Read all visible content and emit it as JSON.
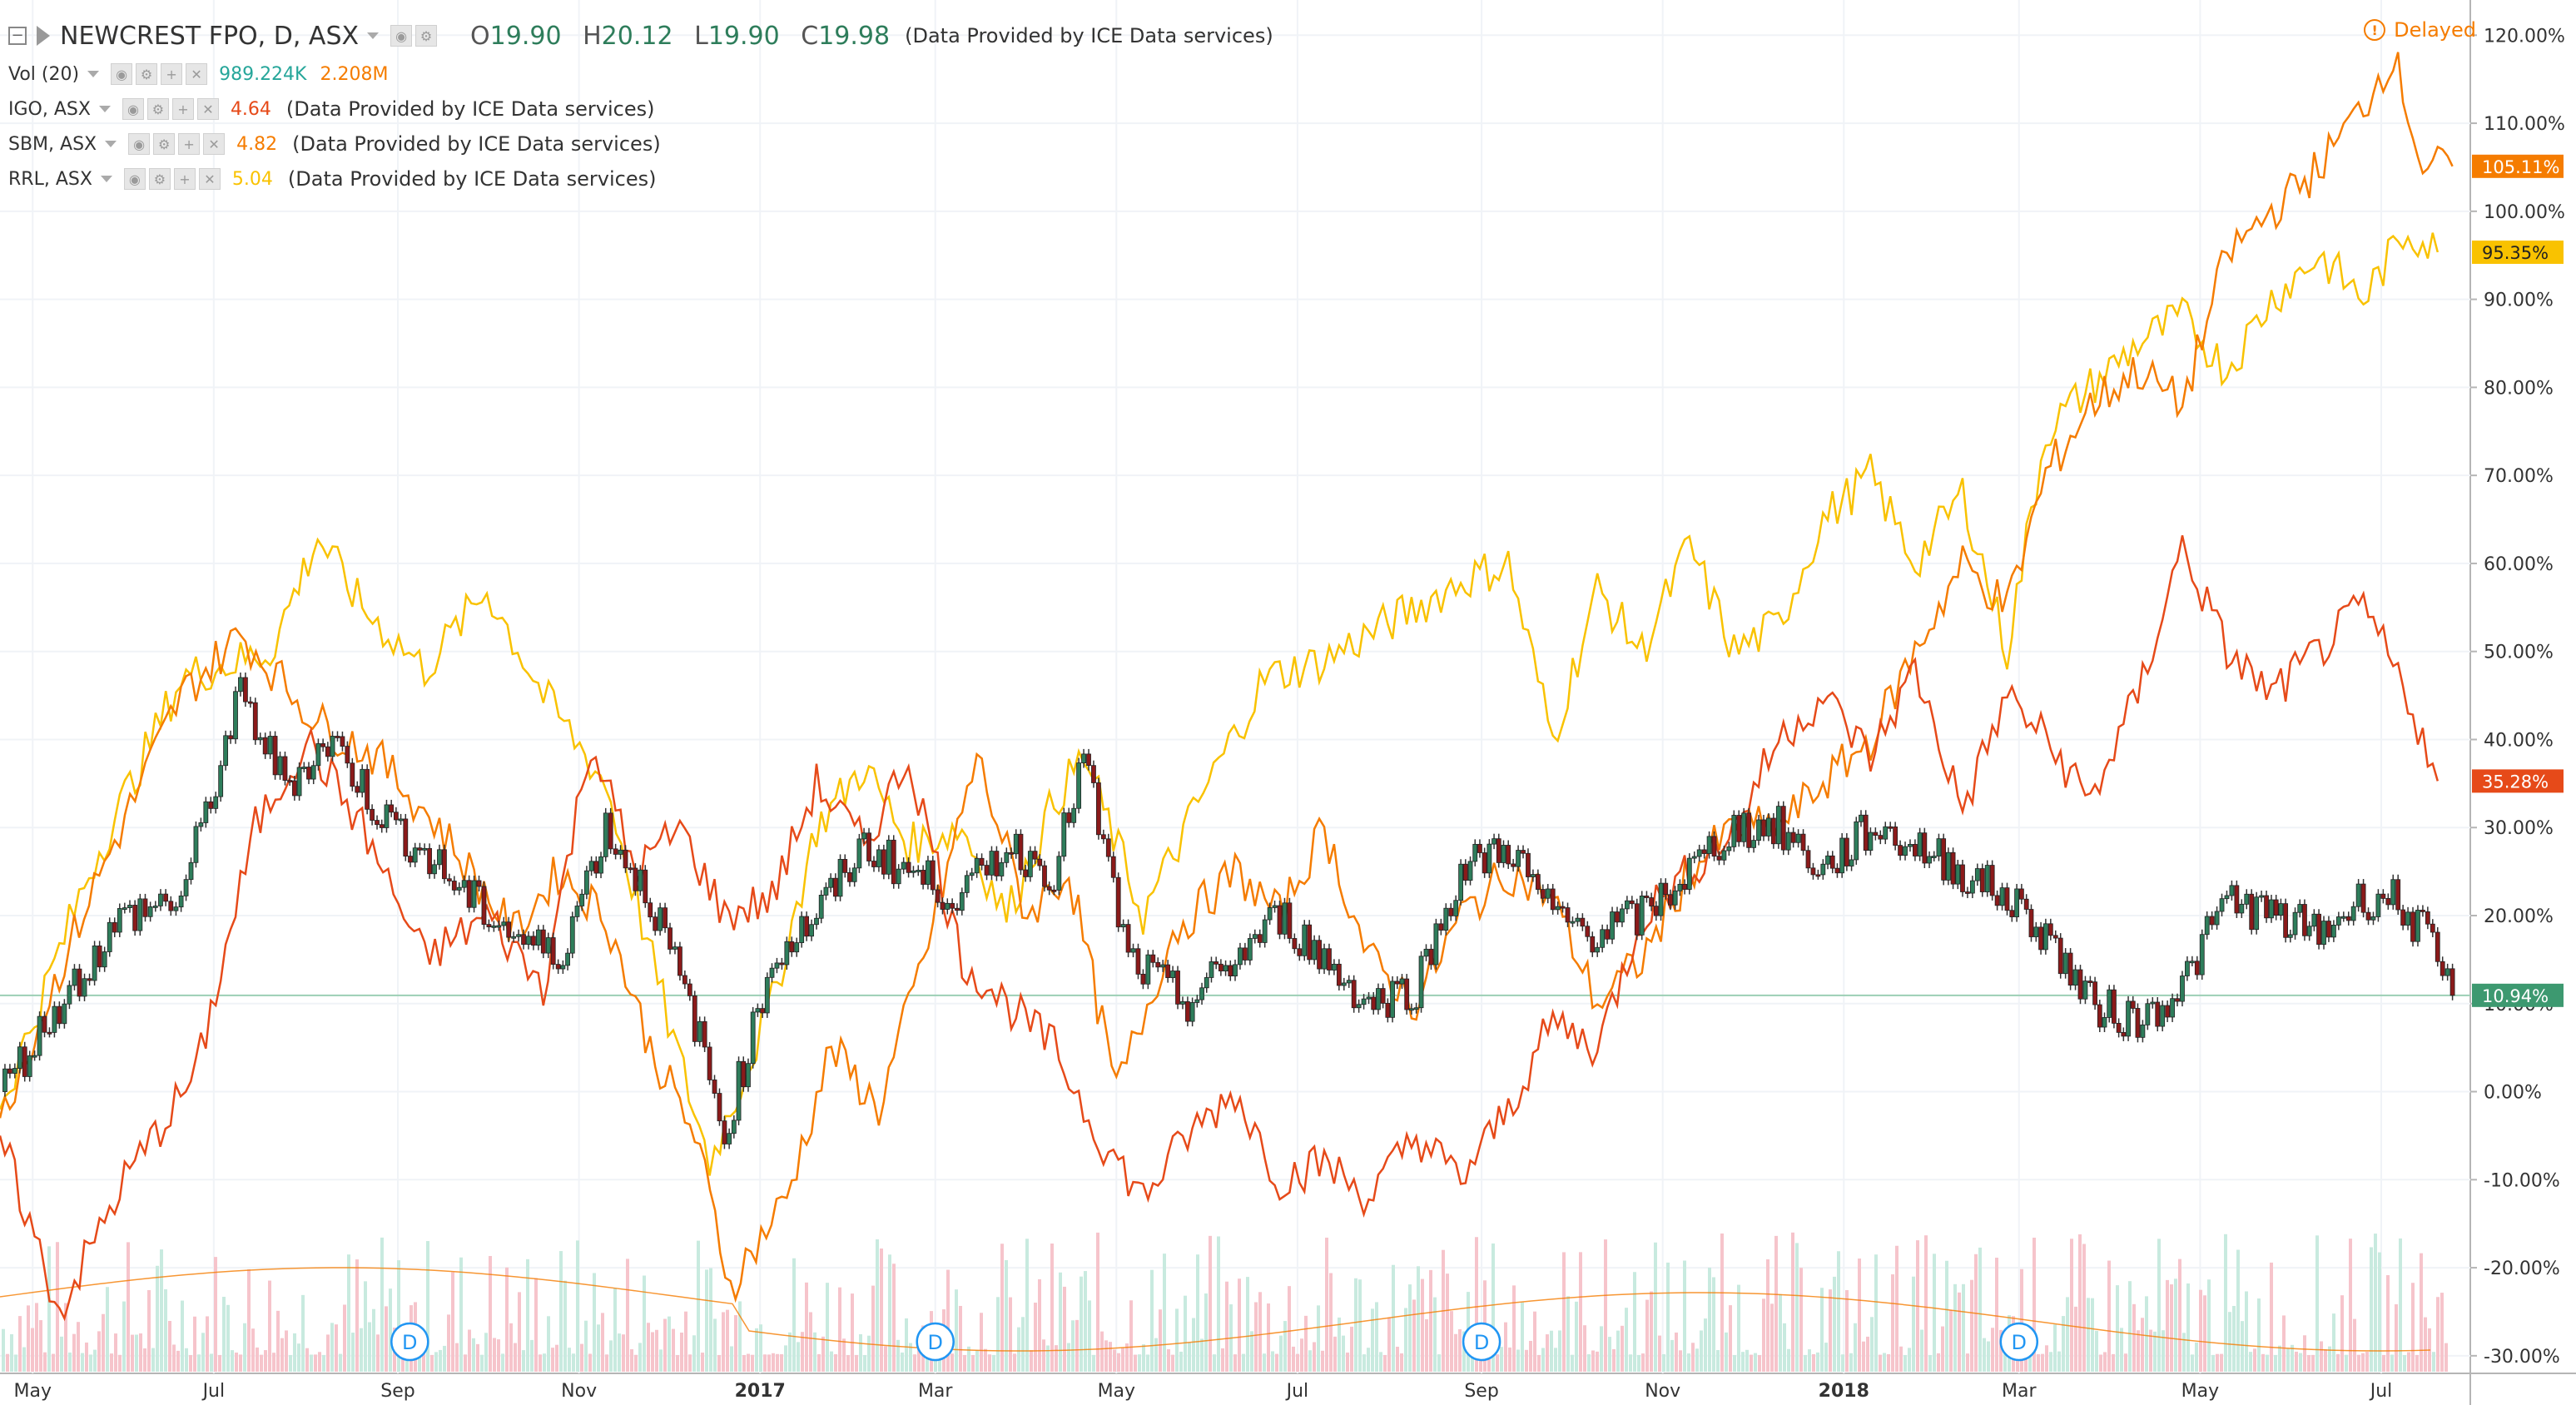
{
  "header": {
    "symbol": "NEWCREST FPO, D, ASX",
    "open_label": "O",
    "open": "19.90",
    "high_label": "H",
    "high": "20.12",
    "low_label": "L",
    "low": "19.90",
    "close_label": "C",
    "close": "19.98",
    "provider": "(Data Provided by ICE Data services)",
    "delayed": "Delayed"
  },
  "studies": [
    {
      "name": "Vol (20)",
      "values": [
        "989.224K",
        "2.208M"
      ],
      "colors": [
        "#26a69a",
        "#f57c00"
      ]
    },
    {
      "name": "IGO, ASX",
      "values": [
        "4.64"
      ],
      "colors": [
        "#e64a19"
      ],
      "provider": "(Data Provided by ICE Data services)"
    },
    {
      "name": "SBM, ASX",
      "values": [
        "4.82"
      ],
      "colors": [
        "#f57c00"
      ],
      "provider": "(Data Provided by ICE Data services)"
    },
    {
      "name": "RRL, ASX",
      "values": [
        "5.04"
      ],
      "colors": [
        "#f9c200"
      ],
      "provider": "(Data Provided by ICE Data services)"
    }
  ],
  "icons": [
    "collapse-icon",
    "flag-icon",
    "eye-icon",
    "gear-icon",
    "plus-icon",
    "close-icon",
    "alert-icon",
    "dividend-icon"
  ],
  "chart_data": {
    "type": "line",
    "ylim": [
      -32,
      124
    ],
    "y_ticks": [
      -30,
      -20,
      -10,
      0,
      10,
      20,
      30,
      40,
      50,
      60,
      70,
      80,
      90,
      100,
      110,
      120
    ],
    "y_tick_labels": [
      "-30.00%",
      "-20.00%",
      "-10.00%",
      "0.00%",
      "10.00%",
      "20.00%",
      "30.00%",
      "40.00%",
      "50.00%",
      "60.00%",
      "70.00%",
      "80.00%",
      "90.00%",
      "100.00%",
      "110.00%",
      "120.00%"
    ],
    "xlim": [
      "2016-04-20",
      "2018-07-31"
    ],
    "x_ticks": [
      "2016-05-01",
      "2016-07-01",
      "2016-09-01",
      "2016-11-01",
      "2017-01-01",
      "2017-03-01",
      "2017-05-01",
      "2017-07-01",
      "2017-09-01",
      "2017-11-01",
      "2018-01-01",
      "2018-03-01",
      "2018-05-01",
      "2018-07-01"
    ],
    "x_tick_labels": [
      "May",
      "Jul",
      "Sep",
      "Nov",
      "2017",
      "Mar",
      "May",
      "Jul",
      "Sep",
      "Nov",
      "2018",
      "Mar",
      "May",
      "Jul"
    ],
    "dividends": {
      "label": "D",
      "dates": [
        "2016-09-05",
        "2017-03-01",
        "2017-09-01",
        "2018-03-01"
      ]
    },
    "series": [
      {
        "name": "RRL, ASX",
        "color": "#f9c200",
        "last_label": "95.35%",
        "x": [
          "2016-04-20",
          "2016-05-20",
          "2016-06-20",
          "2016-07-20",
          "2016-08-05",
          "2016-08-20",
          "2016-09-10",
          "2016-10-01",
          "2016-10-20",
          "2016-11-10",
          "2016-12-01",
          "2016-12-15",
          "2017-01-05",
          "2017-01-20",
          "2017-02-05",
          "2017-02-20",
          "2017-03-10",
          "2017-03-25",
          "2017-04-10",
          "2017-04-20",
          "2017-05-10",
          "2017-06-01",
          "2017-06-20",
          "2017-07-10",
          "2017-07-25",
          "2017-08-10",
          "2017-08-25",
          "2017-09-10",
          "2017-09-25",
          "2017-10-10",
          "2017-10-25",
          "2017-11-10",
          "2017-11-25",
          "2017-12-10",
          "2017-12-25",
          "2018-01-10",
          "2018-01-25",
          "2018-02-10",
          "2018-02-25",
          "2018-03-10",
          "2018-03-25",
          "2018-04-10",
          "2018-04-25",
          "2018-05-10",
          "2018-05-25",
          "2018-06-10",
          "2018-06-25",
          "2018-07-10",
          "2018-07-20"
        ],
        "y": [
          -2,
          25,
          47,
          50,
          63,
          55,
          48,
          57,
          45,
          35,
          8,
          -8,
          10,
          30,
          37,
          28,
          30,
          20,
          33,
          38,
          20,
          35,
          47,
          49,
          52,
          55,
          58,
          60,
          40,
          57,
          50,
          62,
          50,
          53,
          65,
          70,
          60,
          68,
          50,
          75,
          80,
          85,
          88,
          82,
          90,
          95,
          90,
          98,
          95.35
        ]
      },
      {
        "name": "SBM, ASX",
        "color": "#f57c00",
        "last_label": "105.11%",
        "x": [
          "2016-04-20",
          "2016-05-20",
          "2016-06-20",
          "2016-07-10",
          "2016-08-05",
          "2016-08-25",
          "2016-09-15",
          "2016-10-10",
          "2016-10-25",
          "2016-11-10",
          "2016-11-25",
          "2016-12-10",
          "2016-12-22",
          "2017-01-10",
          "2017-01-25",
          "2017-02-10",
          "2017-02-25",
          "2017-03-15",
          "2017-04-01",
          "2017-04-15",
          "2017-05-01",
          "2017-05-20",
          "2017-06-10",
          "2017-06-25",
          "2017-07-10",
          "2017-07-25",
          "2017-08-10",
          "2017-08-25",
          "2017-09-10",
          "2017-09-25",
          "2017-10-10",
          "2017-10-25",
          "2017-11-10",
          "2017-11-25",
          "2017-12-10",
          "2017-12-25",
          "2018-01-10",
          "2018-01-25",
          "2018-02-10",
          "2018-02-25",
          "2018-03-10",
          "2018-03-25",
          "2018-04-10",
          "2018-04-25",
          "2018-05-10",
          "2018-05-25",
          "2018-06-10",
          "2018-06-25",
          "2018-07-05",
          "2018-07-15",
          "2018-07-25"
        ],
        "y": [
          -3,
          22,
          45,
          52,
          42,
          38,
          30,
          18,
          25,
          20,
          5,
          -5,
          -22,
          -12,
          5,
          -2,
          15,
          38,
          20,
          25,
          0,
          18,
          25,
          20,
          30,
          15,
          10,
          20,
          25,
          22,
          10,
          15,
          25,
          30,
          30,
          35,
          40,
          50,
          60,
          55,
          70,
          78,
          82,
          78,
          95,
          100,
          105,
          112,
          118,
          105,
          105.11
        ]
      },
      {
        "name": "IGO, ASX",
        "color": "#e64a19",
        "last_label": "35.28%",
        "x": [
          "2016-04-20",
          "2016-05-10",
          "2016-06-01",
          "2016-06-25",
          "2016-07-15",
          "2016-08-01",
          "2016-08-20",
          "2016-09-10",
          "2016-10-01",
          "2016-10-20",
          "2016-11-05",
          "2016-11-20",
          "2016-12-05",
          "2016-12-20",
          "2017-01-05",
          "2017-01-20",
          "2017-02-05",
          "2017-02-20",
          "2017-03-10",
          "2017-03-25",
          "2017-04-10",
          "2017-04-25",
          "2017-05-10",
          "2017-05-25",
          "2017-06-10",
          "2017-06-25",
          "2017-07-10",
          "2017-07-25",
          "2017-08-10",
          "2017-08-25",
          "2017-09-10",
          "2017-09-25",
          "2017-10-10",
          "2017-10-25",
          "2017-11-10",
          "2017-11-25",
          "2017-12-10",
          "2017-12-25",
          "2018-01-10",
          "2018-01-25",
          "2018-02-10",
          "2018-02-25",
          "2018-03-10",
          "2018-03-25",
          "2018-04-10",
          "2018-04-25",
          "2018-05-10",
          "2018-05-25",
          "2018-06-10",
          "2018-06-25",
          "2018-07-10",
          "2018-07-20"
        ],
        "y": [
          -5,
          -25,
          -10,
          2,
          30,
          40,
          30,
          15,
          20,
          12,
          40,
          25,
          30,
          20,
          22,
          35,
          28,
          38,
          15,
          10,
          5,
          -5,
          -12,
          -5,
          0,
          -10,
          -8,
          -12,
          -5,
          -10,
          -2,
          8,
          5,
          20,
          25,
          30,
          40,
          45,
          38,
          48,
          32,
          45,
          40,
          33,
          45,
          62,
          50,
          45,
          50,
          55,
          45,
          35.28
        ]
      },
      {
        "name": "NEWCREST FPO, D, ASX",
        "color": "#333333",
        "last_label": "10.94%",
        "x": [
          "2016-04-20",
          "2016-05-10",
          "2016-06-01",
          "2016-06-20",
          "2016-07-10",
          "2016-07-25",
          "2016-08-10",
          "2016-08-25",
          "2016-09-10",
          "2016-09-25",
          "2016-10-10",
          "2016-10-25",
          "2016-11-10",
          "2016-11-25",
          "2016-12-10",
          "2016-12-20",
          "2017-01-05",
          "2017-01-20",
          "2017-02-05",
          "2017-02-20",
          "2017-03-10",
          "2017-03-25",
          "2017-04-10",
          "2017-04-20",
          "2017-05-05",
          "2017-05-25",
          "2017-06-10",
          "2017-06-25",
          "2017-07-10",
          "2017-07-25",
          "2017-08-10",
          "2017-08-25",
          "2017-09-10",
          "2017-09-25",
          "2017-10-10",
          "2017-10-25",
          "2017-11-10",
          "2017-11-25",
          "2017-12-10",
          "2017-12-25",
          "2018-01-10",
          "2018-01-25",
          "2018-02-10",
          "2018-02-25",
          "2018-03-10",
          "2018-03-25",
          "2018-04-10",
          "2018-04-25",
          "2018-05-10",
          "2018-05-25",
          "2018-06-10",
          "2018-06-25",
          "2018-07-05",
          "2018-07-15",
          "2018-07-25"
        ],
        "y": [
          0,
          10,
          20,
          22,
          45,
          35,
          40,
          32,
          27,
          22,
          18,
          15,
          30,
          22,
          8,
          -5,
          15,
          20,
          28,
          25,
          22,
          28,
          25,
          38,
          15,
          10,
          15,
          20,
          15,
          10,
          12,
          25,
          28,
          20,
          18,
          20,
          25,
          30,
          30,
          25,
          30,
          28,
          25,
          22,
          18,
          10,
          8,
          12,
          22,
          20,
          18,
          22,
          22,
          18,
          10.94
        ]
      }
    ],
    "volume_axis_max": 14
  }
}
